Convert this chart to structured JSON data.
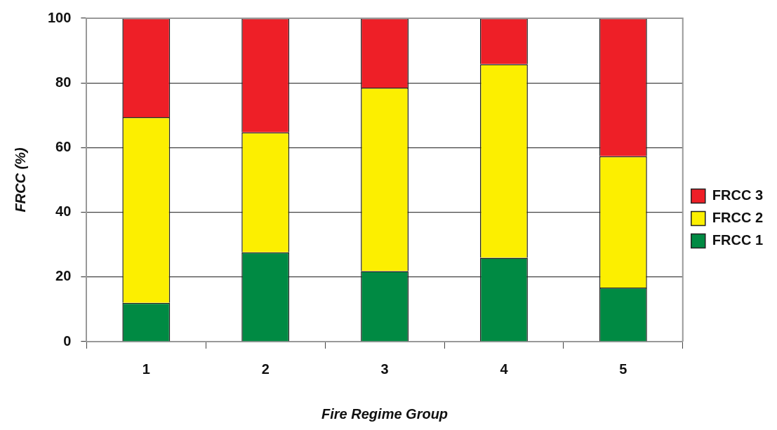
{
  "chart_data": {
    "type": "bar",
    "xlabel": "Fire Regime Group",
    "ylabel": "FRCC (%)",
    "categories": [
      "1",
      "2",
      "3",
      "4",
      "5"
    ],
    "stacked": true,
    "series": [
      {
        "name": "FRCC 1",
        "color": "#008a43",
        "values": [
          12,
          27.6,
          21.8,
          25.9,
          16.7
        ]
      },
      {
        "name": "FRCC 2",
        "color": "#fcef00",
        "values": [
          57.4,
          37.1,
          56.7,
          59.9,
          40.6
        ]
      },
      {
        "name": "FRCC 3",
        "color": "#ee1f27",
        "values": [
          30.6,
          35.3,
          21.5,
          14.2,
          42.7
        ]
      }
    ],
    "ylim": [
      0,
      100
    ],
    "yticks": [
      0,
      20,
      40,
      60,
      80,
      100
    ],
    "grid": "y",
    "legend": "right"
  }
}
